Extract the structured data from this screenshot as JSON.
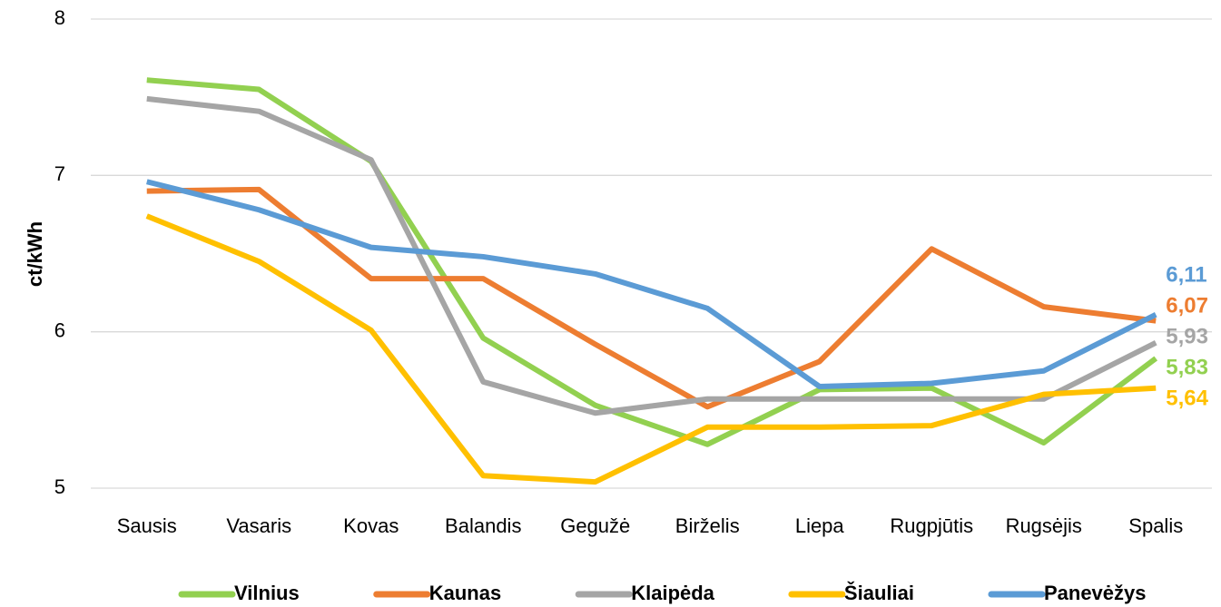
{
  "chart_data": {
    "type": "line",
    "y_label": "ct/kWh",
    "categories": [
      "Sausis",
      "Vasaris",
      "Kovas",
      "Balandis",
      "Gegužė",
      "Birželis",
      "Liepa",
      "Rugpjūtis",
      "Rugsėjis",
      "Spalis"
    ],
    "ylim": [
      5,
      8
    ],
    "yticks": [
      5,
      6,
      7,
      8
    ],
    "grid": true,
    "legend": "bottom",
    "series": [
      {
        "name": "Vilnius",
        "color": "#92d050",
        "values": [
          7.61,
          7.55,
          7.09,
          5.96,
          5.53,
          5.28,
          5.63,
          5.64,
          5.29,
          5.83
        ],
        "value_labels": [
          null,
          null,
          null,
          null,
          null,
          null,
          null,
          null,
          null,
          "5,83"
        ]
      },
      {
        "name": "Kaunas",
        "color": "#ed7d31",
        "values": [
          6.9,
          6.91,
          6.34,
          6.34,
          5.92,
          5.52,
          5.81,
          6.53,
          6.16,
          6.07
        ],
        "value_labels": [
          null,
          null,
          null,
          null,
          null,
          null,
          null,
          null,
          null,
          "6,07"
        ]
      },
      {
        "name": "Klaipėda",
        "color": "#a5a5a5",
        "values": [
          7.49,
          7.41,
          7.1,
          5.68,
          5.48,
          5.57,
          5.57,
          5.57,
          5.57,
          5.93
        ],
        "value_labels": [
          null,
          null,
          null,
          null,
          null,
          null,
          null,
          null,
          null,
          "5,93"
        ]
      },
      {
        "name": "Šiauliai",
        "color": "#ffc000",
        "values": [
          6.74,
          6.45,
          6.01,
          5.08,
          5.04,
          5.39,
          5.39,
          5.4,
          5.6,
          5.64
        ],
        "value_labels": [
          null,
          null,
          null,
          null,
          null,
          null,
          null,
          null,
          null,
          "5,64"
        ]
      },
      {
        "name": "Panevėžys",
        "color": "#5b9bd5",
        "values": [
          6.96,
          6.78,
          6.54,
          6.48,
          6.37,
          6.15,
          5.65,
          5.67,
          5.75,
          6.11
        ],
        "value_labels": [
          null,
          null,
          null,
          null,
          null,
          null,
          null,
          null,
          null,
          "6,11"
        ]
      }
    ]
  }
}
